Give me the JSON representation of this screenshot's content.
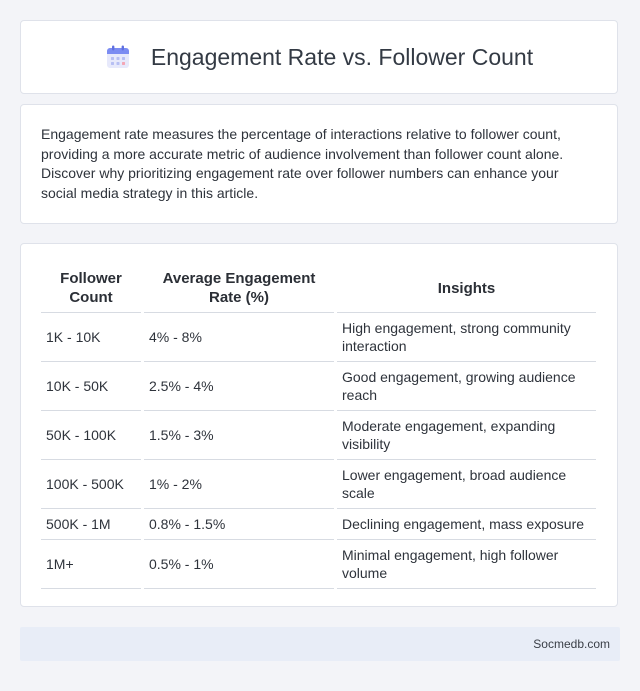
{
  "header": {
    "title": "Engagement Rate vs. Follower Count",
    "icon": "calendar-icon",
    "icon_colors": {
      "top": "#7b8cf2",
      "body": "#e7e9fb",
      "dots": "#b7bff3"
    }
  },
  "intro": {
    "text": "Engagement rate measures the percentage of interactions relative to follower count, providing a more accurate metric of audience involvement than follower count alone. Discover why prioritizing engagement rate over follower numbers can enhance your social media strategy in this article."
  },
  "table": {
    "headers": [
      "Follower Count",
      "Average Engagement Rate (%)",
      "Insights"
    ],
    "rows": [
      {
        "followers": "1K - 10K",
        "rate": "4% - 8%",
        "insight": "High engagement, strong community interaction"
      },
      {
        "followers": "10K - 50K",
        "rate": "2.5% - 4%",
        "insight": "Good engagement, growing audience reach"
      },
      {
        "followers": "50K - 100K",
        "rate": "1.5% - 3%",
        "insight": "Moderate engagement, expanding visibility"
      },
      {
        "followers": "100K - 500K",
        "rate": "1% - 2%",
        "insight": "Lower engagement, broad audience scale"
      },
      {
        "followers": "500K - 1M",
        "rate": "0.8% - 1.5%",
        "insight": "Declining engagement, mass exposure"
      },
      {
        "followers": "1M+",
        "rate": "0.5% - 1%",
        "insight": "Minimal engagement, high follower volume"
      }
    ]
  },
  "footer": {
    "site": "Socmedb.com"
  }
}
